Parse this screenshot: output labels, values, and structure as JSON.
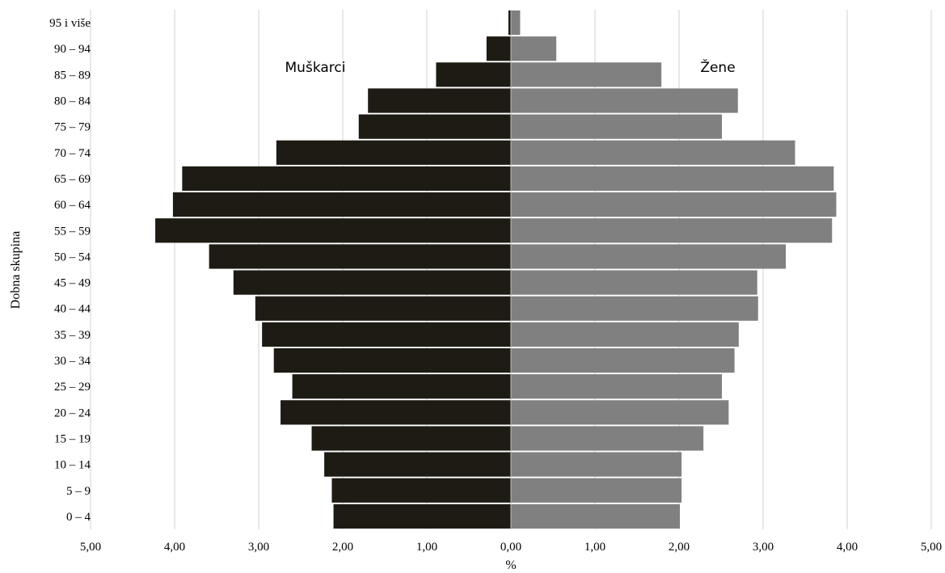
{
  "chart_data": {
    "type": "bar",
    "orientation": "horizontal",
    "chart_kind": "population pyramid",
    "ylabel": "Dobna skupina",
    "xlabel": "%",
    "xlim": [
      -5,
      5
    ],
    "x_ticks": [
      -5,
      -4,
      -3,
      -2,
      -1,
      0,
      1,
      2,
      3,
      4,
      5
    ],
    "x_tick_labels": [
      "5,00",
      "4,00",
      "3,00",
      "2,00",
      "1,00",
      "0,00",
      "1,00",
      "2,00",
      "3,00",
      "4,00",
      "5,00"
    ],
    "grid": "vertical",
    "categories": [
      "0 – 4",
      "5 – 9",
      "10 – 14",
      "15 – 19",
      "20 – 24",
      "25 – 29",
      "30 – 34",
      "35 – 39",
      "40 – 44",
      "45 – 49",
      "50 – 54",
      "55 – 59",
      "60 – 64",
      "65 – 69",
      "70 – 74",
      "75 – 79",
      "80 – 84",
      "85 – 89",
      "90 – 94",
      "95 i više"
    ],
    "series": [
      {
        "name": "Muškarci",
        "side": "left",
        "color": "#1e1b14",
        "values": [
          2.11,
          2.13,
          2.22,
          2.37,
          2.74,
          2.6,
          2.82,
          2.96,
          3.04,
          3.3,
          3.59,
          4.23,
          4.02,
          3.91,
          2.79,
          1.81,
          1.7,
          0.89,
          0.29,
          0.03
        ]
      },
      {
        "name": "Žene",
        "side": "right",
        "color": "#808080",
        "values": [
          2.01,
          2.03,
          2.03,
          2.29,
          2.59,
          2.51,
          2.66,
          2.71,
          2.94,
          2.93,
          3.27,
          3.82,
          3.87,
          3.84,
          3.38,
          2.51,
          2.7,
          1.79,
          0.54,
          0.11
        ]
      }
    ]
  }
}
